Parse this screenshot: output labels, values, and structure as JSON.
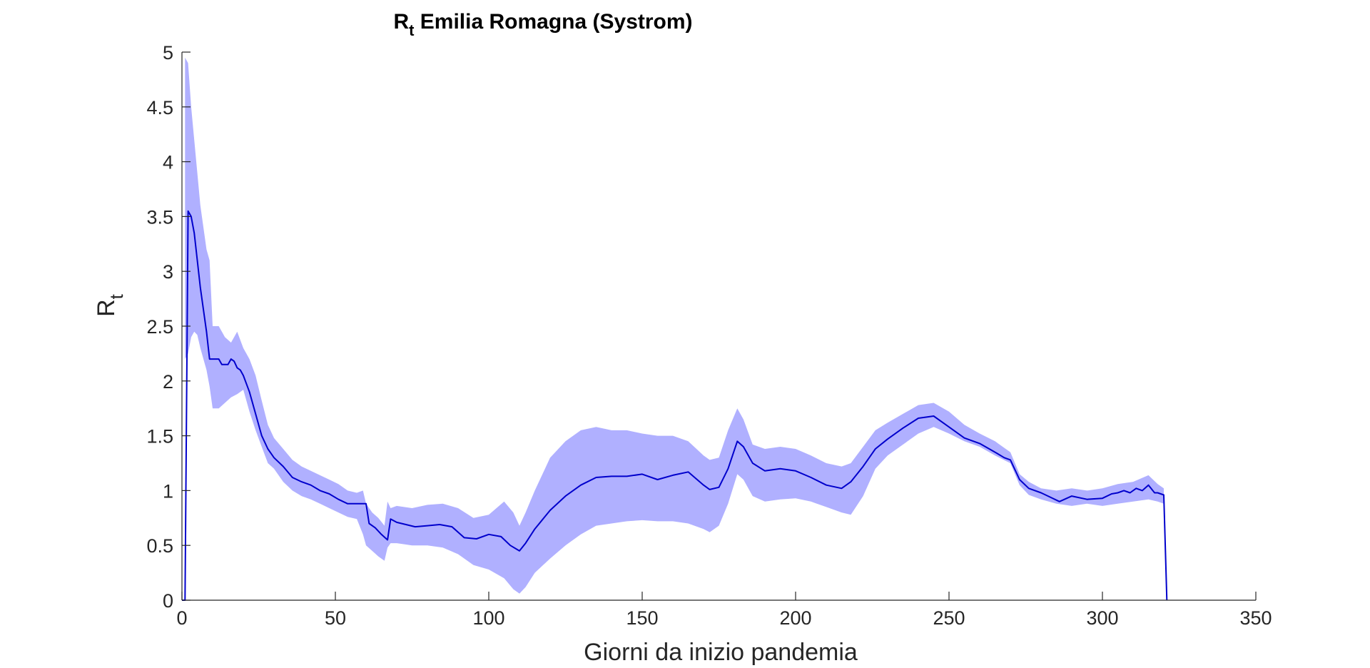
{
  "chart_data": {
    "type": "line",
    "title": {
      "main": "R",
      "sub": "t",
      "rest": " Emilia Romagna (Systrom)"
    },
    "xlabel": "Giorni da inizio pandemia",
    "ylabel": {
      "main": "R",
      "sub": "t"
    },
    "xlim": [
      0,
      350
    ],
    "ylim": [
      0,
      5
    ],
    "xticks": [
      0,
      50,
      100,
      150,
      200,
      250,
      300,
      350
    ],
    "yticks": [
      0,
      0.5,
      1,
      1.5,
      2,
      2.5,
      3,
      3.5,
      4,
      4.5,
      5
    ],
    "xtick_labels": [
      "0",
      "50",
      "100",
      "150",
      "200",
      "250",
      "300",
      "350"
    ],
    "ytick_labels": [
      "0",
      "0.5",
      "1",
      "1.5",
      "2",
      "2.5",
      "3",
      "3.5",
      "4",
      "4.5",
      "5"
    ],
    "grid": false,
    "colors": {
      "line": "#0000cc",
      "band": "#b0b0ff",
      "axis": "#262626"
    },
    "series": [
      {
        "type": "line",
        "x": [
          0,
          1,
          2,
          3,
          4,
          5,
          6,
          7,
          8,
          9,
          10,
          11,
          12,
          13,
          14,
          15,
          16,
          17,
          18,
          19,
          20,
          22,
          24,
          26,
          28,
          30,
          33,
          36,
          39,
          42,
          45,
          48,
          51,
          54,
          57,
          60,
          61,
          63,
          65,
          67,
          68,
          70,
          73,
          76,
          80,
          84,
          88,
          92,
          96,
          100,
          104,
          107,
          110,
          112,
          115,
          120,
          125,
          130,
          135,
          140,
          145,
          150,
          155,
          160,
          165,
          170,
          172,
          175,
          178,
          181,
          183,
          186,
          190,
          195,
          200,
          205,
          210,
          215,
          218,
          222,
          226,
          230,
          235,
          240,
          245,
          250,
          255,
          260,
          265,
          268,
          270,
          273,
          276,
          280,
          283,
          286,
          290,
          295,
          300,
          303,
          305,
          307,
          309,
          311,
          313,
          315,
          317,
          318,
          320,
          321
        ],
        "values": [
          0,
          0,
          3.55,
          3.5,
          3.35,
          3.1,
          2.85,
          2.65,
          2.45,
          2.2,
          2.2,
          2.2,
          2.2,
          2.15,
          2.15,
          2.15,
          2.2,
          2.18,
          2.12,
          2.1,
          2.05,
          1.9,
          1.7,
          1.5,
          1.38,
          1.3,
          1.22,
          1.12,
          1.08,
          1.05,
          1.0,
          0.97,
          0.92,
          0.88,
          0.88,
          0.88,
          0.7,
          0.66,
          0.6,
          0.55,
          0.74,
          0.71,
          0.69,
          0.67,
          0.68,
          0.69,
          0.67,
          0.57,
          0.56,
          0.6,
          0.58,
          0.5,
          0.45,
          0.52,
          0.65,
          0.82,
          0.95,
          1.05,
          1.12,
          1.13,
          1.13,
          1.15,
          1.1,
          1.14,
          1.17,
          1.05,
          1.01,
          1.03,
          1.2,
          1.45,
          1.4,
          1.25,
          1.18,
          1.2,
          1.18,
          1.12,
          1.05,
          1.02,
          1.08,
          1.22,
          1.38,
          1.47,
          1.57,
          1.66,
          1.68,
          1.58,
          1.48,
          1.43,
          1.35,
          1.3,
          1.28,
          1.1,
          1.02,
          0.98,
          0.94,
          0.9,
          0.95,
          0.92,
          0.93,
          0.97,
          0.98,
          1.0,
          0.98,
          1.02,
          1.0,
          1.05,
          0.98,
          0.98,
          0.96,
          0.0
        ]
      },
      {
        "type": "band",
        "x": [
          1,
          2,
          3,
          4,
          5,
          6,
          7,
          8,
          9,
          10,
          12,
          14,
          16,
          18,
          20,
          22,
          24,
          26,
          28,
          30,
          33,
          36,
          39,
          42,
          45,
          48,
          51,
          54,
          57,
          59,
          60,
          62,
          64,
          66,
          67,
          68,
          70,
          75,
          80,
          85,
          90,
          95,
          100,
          105,
          108,
          110,
          112,
          115,
          120,
          125,
          130,
          135,
          140,
          145,
          150,
          155,
          160,
          165,
          170,
          172,
          175,
          178,
          181,
          183,
          186,
          190,
          195,
          200,
          205,
          210,
          215,
          218,
          222,
          226,
          230,
          235,
          240,
          245,
          250,
          255,
          260,
          265,
          270,
          273,
          276,
          280,
          285,
          290,
          295,
          300,
          305,
          310,
          315,
          318,
          320
        ],
        "upper": [
          4.95,
          4.9,
          4.5,
          4.2,
          3.9,
          3.6,
          3.4,
          3.2,
          3.1,
          2.5,
          2.5,
          2.4,
          2.35,
          2.45,
          2.3,
          2.2,
          2.05,
          1.82,
          1.6,
          1.48,
          1.38,
          1.28,
          1.22,
          1.18,
          1.14,
          1.1,
          1.06,
          1.0,
          0.98,
          1.0,
          0.88,
          0.8,
          0.75,
          0.68,
          0.9,
          0.84,
          0.86,
          0.84,
          0.87,
          0.88,
          0.84,
          0.75,
          0.78,
          0.9,
          0.8,
          0.68,
          0.8,
          1.0,
          1.3,
          1.45,
          1.55,
          1.58,
          1.55,
          1.55,
          1.52,
          1.5,
          1.5,
          1.45,
          1.32,
          1.28,
          1.3,
          1.55,
          1.75,
          1.65,
          1.42,
          1.38,
          1.4,
          1.38,
          1.32,
          1.25,
          1.22,
          1.25,
          1.4,
          1.55,
          1.62,
          1.7,
          1.78,
          1.8,
          1.72,
          1.6,
          1.52,
          1.45,
          1.35,
          1.15,
          1.08,
          1.02,
          1.0,
          1.02,
          1.0,
          1.02,
          1.06,
          1.08,
          1.14,
          1.06,
          1.02
        ],
        "lower": [
          2.2,
          2.25,
          2.4,
          2.45,
          2.42,
          2.3,
          2.2,
          2.1,
          1.95,
          1.75,
          1.75,
          1.8,
          1.85,
          1.88,
          1.92,
          1.72,
          1.55,
          1.4,
          1.25,
          1.2,
          1.08,
          1.0,
          0.95,
          0.92,
          0.88,
          0.84,
          0.8,
          0.76,
          0.74,
          0.6,
          0.5,
          0.45,
          0.4,
          0.36,
          0.48,
          0.52,
          0.52,
          0.5,
          0.5,
          0.48,
          0.42,
          0.32,
          0.28,
          0.2,
          0.1,
          0.06,
          0.12,
          0.25,
          0.38,
          0.5,
          0.6,
          0.68,
          0.7,
          0.72,
          0.73,
          0.72,
          0.72,
          0.7,
          0.65,
          0.62,
          0.68,
          0.88,
          1.15,
          1.1,
          0.95,
          0.9,
          0.92,
          0.93,
          0.9,
          0.85,
          0.8,
          0.78,
          0.95,
          1.2,
          1.32,
          1.42,
          1.52,
          1.58,
          1.52,
          1.45,
          1.4,
          1.32,
          1.25,
          1.05,
          0.96,
          0.92,
          0.88,
          0.86,
          0.88,
          0.86,
          0.88,
          0.9,
          0.92,
          0.9,
          0.88
        ]
      }
    ]
  }
}
